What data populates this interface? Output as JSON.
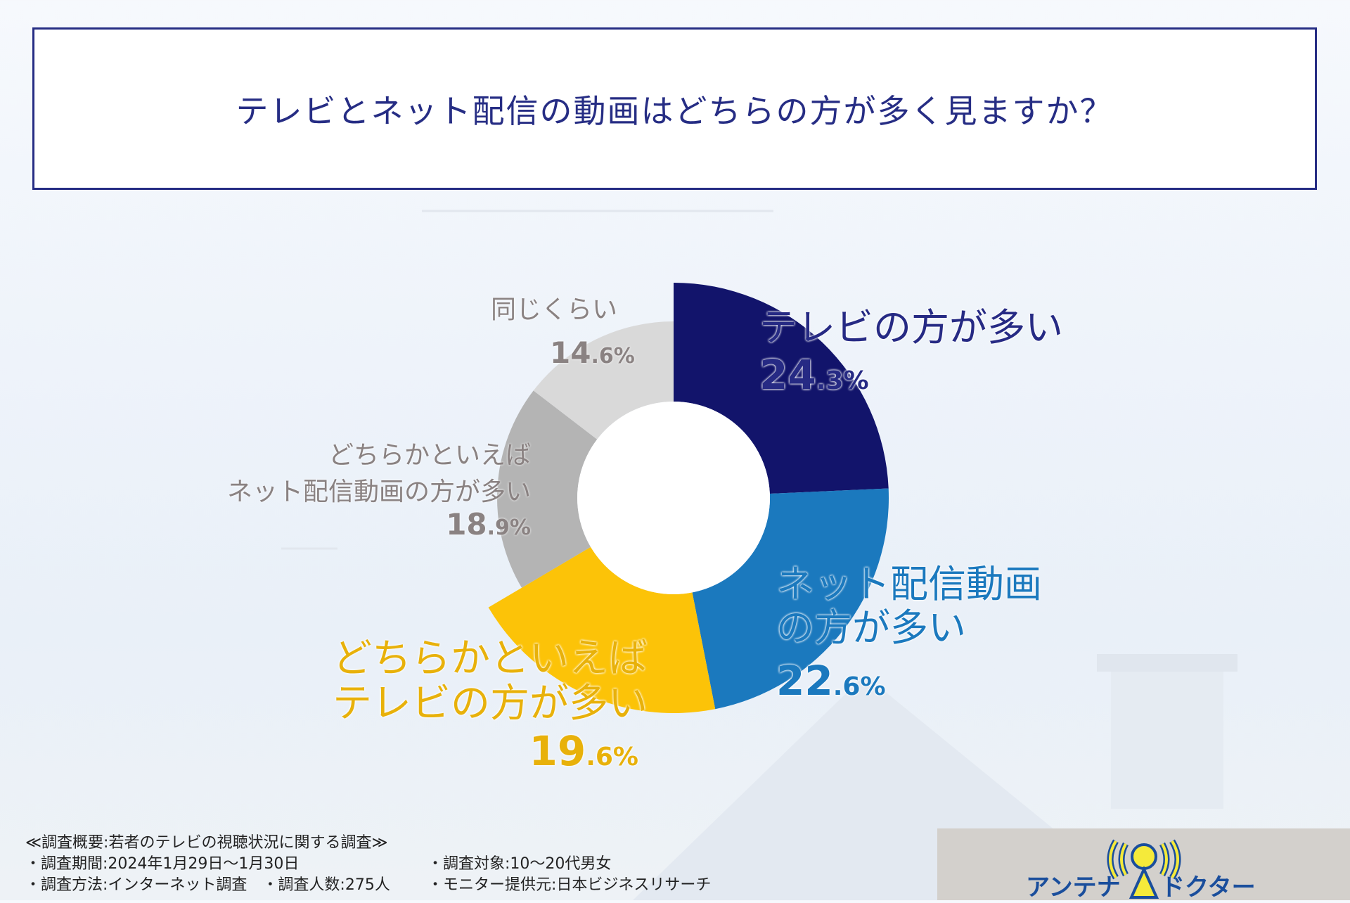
{
  "title": "テレビとネット配信の動画はどちらの方が多く見ますか？",
  "chart_data": {
    "type": "pie",
    "title": "テレビとネット配信の動画はどちらの方が多く見ますか？",
    "slices": [
      {
        "label": "テレビの方が多い",
        "value": 24.3,
        "color": "#12146b",
        "int": "24",
        "dec": ".3%"
      },
      {
        "label": "ネット配信動画の方が多い",
        "value": 22.6,
        "color": "#1b79be",
        "int": "22",
        "dec": ".6%"
      },
      {
        "label": "どちらかといえばテレビの方が多い",
        "value": 19.6,
        "color": "#fcc308",
        "int": "19",
        "dec": ".6%"
      },
      {
        "label": "どちらかといえばネット配信動画の方が多い",
        "value": 18.9,
        "color": "#b4b4b4",
        "int": "18",
        "dec": ".9%"
      },
      {
        "label": "同じくらい",
        "value": 14.6,
        "color": "#d9d9d9",
        "int": "14",
        "dec": ".6%"
      }
    ],
    "label_lines": {
      "s0": [
        "テレビの方が多い"
      ],
      "s1": [
        "ネット配信動画",
        "の方が多い"
      ],
      "s2": [
        "どちらかといえば",
        "テレビの方が多い"
      ],
      "s3": [
        "どちらかといえば",
        "ネット配信動画の方が多い"
      ],
      "s4": [
        "同じくらい"
      ]
    }
  },
  "footer": {
    "heading": "≪調査概要:若者のテレビの視聴状況に関する調査≫",
    "period": "・調査期間:2024年1月29日〜1月30日",
    "method": "・調査方法:インターネット調査　・調査人数:275人",
    "target": "・調査対象:10〜20代男女",
    "provider": "・モニター提供元:日本ビジネスリサーチ"
  },
  "logo": {
    "text": "アンテナドクター"
  }
}
